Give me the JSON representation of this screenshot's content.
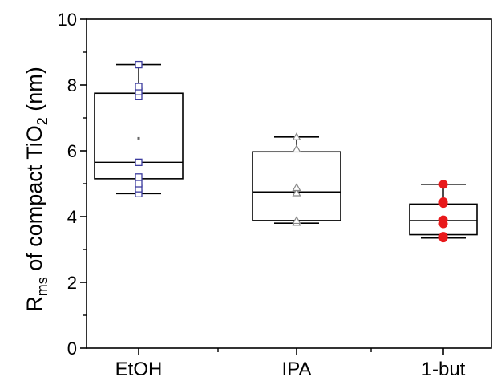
{
  "chart_data": {
    "type": "box",
    "ylabel": {
      "main": "R",
      "sub1": "ms",
      "mid": " of compact TiO",
      "sub2": "2",
      "end": " (nm)"
    },
    "xlabel": "",
    "ylim": [
      0,
      10
    ],
    "yticks": [
      "0",
      "2",
      "4",
      "6",
      "8",
      "10"
    ],
    "categories": [
      "EtOH",
      "IPA",
      "1-but"
    ],
    "boxes": [
      {
        "category": "EtOH",
        "whisker_low": 4.7,
        "q1": 5.15,
        "median": 5.65,
        "q3": 7.75,
        "whisker_high": 8.62,
        "mean": 6.38,
        "points": [
          4.7,
          4.85,
          5.0,
          5.2,
          5.65,
          7.65,
          7.8,
          7.95,
          8.62
        ],
        "marker": "open-square",
        "color": "#3b3b9e"
      },
      {
        "category": "IPA",
        "whisker_low": 3.8,
        "q1": 3.88,
        "median": 4.75,
        "q3": 5.97,
        "whisker_high": 6.42,
        "mean": 4.82,
        "points": [
          3.82,
          3.88,
          4.72,
          4.88,
          6.05,
          6.42
        ],
        "marker": "open-triangle",
        "color": "#888888"
      },
      {
        "category": "1-but",
        "whisker_low": 3.35,
        "q1": 3.45,
        "median": 3.88,
        "q3": 4.38,
        "whisker_high": 4.98,
        "mean": 3.9,
        "points": [
          3.35,
          3.4,
          3.78,
          3.9,
          4.4,
          4.45,
          4.98
        ],
        "marker": "filled-circle",
        "color": "#e8191b"
      }
    ],
    "grid": false,
    "legend": "none"
  }
}
